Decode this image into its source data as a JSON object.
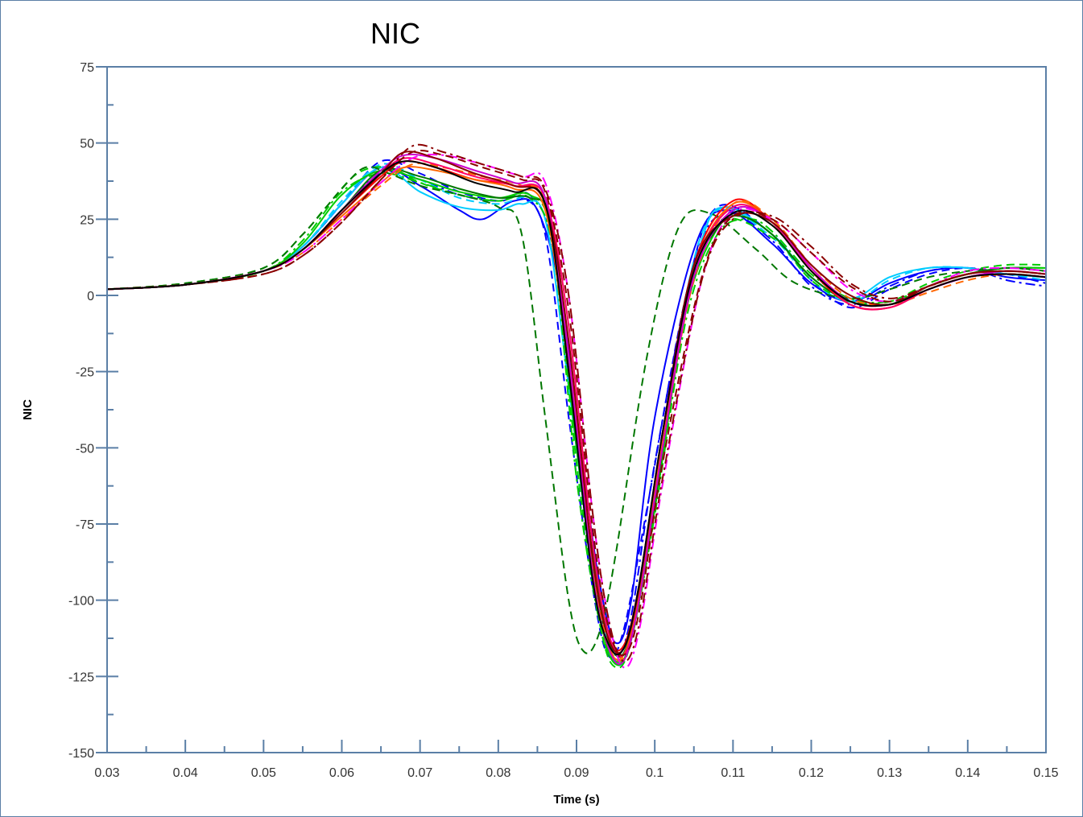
{
  "chart_data": {
    "type": "line",
    "title": "NIC",
    "xlabel": "Time (s)",
    "ylabel": "NIC",
    "xlim": [
      0.03,
      0.15
    ],
    "ylim": [
      -150,
      75
    ],
    "xticks": [
      "0.03",
      "0.04",
      "0.05",
      "0.06",
      "0.07",
      "0.08",
      "0.09",
      "0.1",
      "0.11",
      "0.12",
      "0.13",
      "0.14",
      "0.15"
    ],
    "yticks": [
      "75",
      "50",
      "25",
      "0",
      "-25",
      "-50",
      "-75",
      "-100",
      "-125",
      "-150"
    ],
    "xtick_values": [
      0.03,
      0.04,
      0.05,
      0.06,
      0.07,
      0.08,
      0.09,
      0.1,
      0.11,
      0.12,
      0.13,
      0.14,
      0.15
    ],
    "ytick_values": [
      75,
      50,
      25,
      0,
      -25,
      -50,
      -75,
      -100,
      -125,
      -150
    ],
    "grid": false,
    "legend": "none",
    "series": [
      {
        "color": "#0000ff",
        "dash": "solid",
        "x": [
          0.03,
          0.04,
          0.05,
          0.055,
          0.06,
          0.065,
          0.07,
          0.075,
          0.078,
          0.082,
          0.085,
          0.088,
          0.091,
          0.093,
          0.095,
          0.097,
          0.1,
          0.105,
          0.109,
          0.115,
          0.12,
          0.125,
          0.13,
          0.135,
          0.14,
          0.145,
          0.15
        ],
        "y": [
          2,
          3.5,
          8,
          16,
          30,
          42,
          36,
          28,
          25,
          31,
          28,
          0,
          -60,
          -95,
          -114,
          -100,
          -40,
          15,
          28,
          17,
          4,
          -2,
          4,
          8,
          9,
          6,
          5
        ]
      },
      {
        "color": "#0000ff",
        "dash": "dashed",
        "x": [
          0.03,
          0.04,
          0.05,
          0.055,
          0.06,
          0.065,
          0.07,
          0.075,
          0.08,
          0.083,
          0.086,
          0.089,
          0.092,
          0.094,
          0.096,
          0.099,
          0.104,
          0.108,
          0.115,
          0.12,
          0.125,
          0.13,
          0.135,
          0.14,
          0.145,
          0.15
        ],
        "y": [
          2,
          3.5,
          8,
          16,
          30,
          44,
          40,
          34,
          31,
          32,
          20,
          -40,
          -95,
          -118,
          -110,
          -70,
          0,
          29,
          20,
          5,
          -4,
          2,
          7,
          9,
          7,
          4
        ]
      },
      {
        "color": "#0000ff",
        "dash": "dashdot",
        "x": [
          0.03,
          0.04,
          0.05,
          0.055,
          0.06,
          0.065,
          0.07,
          0.075,
          0.08,
          0.084,
          0.087,
          0.09,
          0.093,
          0.095,
          0.097,
          0.1,
          0.105,
          0.109,
          0.115,
          0.12,
          0.125,
          0.13,
          0.135,
          0.14,
          0.145,
          0.15
        ],
        "y": [
          2,
          3.5,
          8,
          15,
          28,
          40,
          38,
          33,
          31,
          33,
          15,
          -50,
          -100,
          -118,
          -105,
          -55,
          10,
          27,
          18,
          3,
          -3,
          3,
          8,
          9,
          5,
          3
        ]
      },
      {
        "color": "#00ccff",
        "dash": "solid",
        "x": [
          0.03,
          0.04,
          0.05,
          0.055,
          0.06,
          0.065,
          0.07,
          0.075,
          0.08,
          0.083,
          0.086,
          0.089,
          0.092,
          0.094,
          0.096,
          0.098,
          0.102,
          0.106,
          0.109,
          0.115,
          0.12,
          0.125,
          0.13,
          0.135,
          0.14,
          0.145,
          0.15
        ],
        "y": [
          2,
          3.5,
          8,
          16,
          30,
          42,
          34,
          29,
          28,
          30,
          25,
          -30,
          -90,
          -115,
          -120,
          -95,
          -30,
          18,
          29,
          20,
          6,
          -1,
          6,
          9,
          9,
          7,
          6
        ]
      },
      {
        "color": "#00ccff",
        "dash": "dashed",
        "x": [
          0.03,
          0.04,
          0.05,
          0.055,
          0.06,
          0.065,
          0.07,
          0.075,
          0.08,
          0.084,
          0.087,
          0.09,
          0.093,
          0.095,
          0.097,
          0.1,
          0.104,
          0.108,
          0.115,
          0.12,
          0.125,
          0.13,
          0.135,
          0.14,
          0.145,
          0.15
        ],
        "y": [
          2,
          3.5,
          8,
          16,
          31,
          43,
          38,
          32,
          30,
          32,
          22,
          -45,
          -100,
          -120,
          -112,
          -70,
          0,
          28,
          19,
          5,
          -2,
          5,
          9,
          9,
          7,
          5
        ]
      },
      {
        "color": "#00cc00",
        "dash": "solid",
        "x": [
          0.03,
          0.04,
          0.05,
          0.055,
          0.06,
          0.065,
          0.07,
          0.075,
          0.08,
          0.084,
          0.087,
          0.09,
          0.093,
          0.095,
          0.097,
          0.1,
          0.104,
          0.108,
          0.111,
          0.115,
          0.12,
          0.125,
          0.13,
          0.135,
          0.14,
          0.145,
          0.15
        ],
        "y": [
          2,
          3.5,
          8,
          17,
          33,
          41,
          38,
          34,
          32,
          33,
          20,
          -50,
          -105,
          -121,
          -112,
          -70,
          -5,
          22,
          26,
          20,
          6,
          -2,
          -3,
          3,
          7,
          9,
          9
        ]
      },
      {
        "color": "#00cc00",
        "dash": "dashed",
        "x": [
          0.03,
          0.04,
          0.05,
          0.055,
          0.058,
          0.062,
          0.066,
          0.07,
          0.075,
          0.08,
          0.084,
          0.087,
          0.09,
          0.093,
          0.095,
          0.097,
          0.1,
          0.104,
          0.108,
          0.115,
          0.12,
          0.125,
          0.13,
          0.135,
          0.14,
          0.145,
          0.15
        ],
        "y": [
          2,
          4,
          9,
          20,
          29,
          40,
          42,
          37,
          33,
          31,
          33,
          18,
          -55,
          -108,
          -122,
          -113,
          -70,
          -5,
          24,
          19,
          5,
          -2,
          -2,
          4,
          8,
          10,
          10
        ]
      },
      {
        "color": "#00cc00",
        "dash": "dashdot",
        "x": [
          0.03,
          0.04,
          0.05,
          0.055,
          0.06,
          0.065,
          0.07,
          0.075,
          0.08,
          0.084,
          0.087,
          0.09,
          0.093,
          0.095,
          0.097,
          0.1,
          0.104,
          0.108,
          0.112,
          0.115,
          0.12,
          0.125,
          0.13,
          0.135,
          0.14,
          0.145,
          0.15
        ],
        "y": [
          2,
          3.5,
          8,
          18,
          34,
          40,
          37,
          33,
          31,
          32,
          15,
          -60,
          -108,
          -120,
          -113,
          -72,
          -8,
          20,
          25,
          21,
          7,
          -1,
          -2,
          3,
          7,
          9,
          9
        ]
      },
      {
        "color": "#007700",
        "dash": "dashed",
        "x": [
          0.03,
          0.04,
          0.05,
          0.055,
          0.06,
          0.063,
          0.066,
          0.07,
          0.075,
          0.08,
          0.083,
          0.086,
          0.089,
          0.091,
          0.093,
          0.095,
          0.099,
          0.103,
          0.107,
          0.113,
          0.118,
          0.125,
          0.13,
          0.135,
          0.14,
          0.145,
          0.15
        ],
        "y": [
          2,
          4,
          9,
          20,
          35,
          42,
          40,
          36,
          33,
          29,
          20,
          -40,
          -100,
          -117,
          -110,
          -85,
          -20,
          22,
          27,
          15,
          4,
          -1,
          2,
          6,
          8,
          9,
          8
        ]
      },
      {
        "color": "#007700",
        "dash": "solid",
        "x": [
          0.03,
          0.04,
          0.05,
          0.055,
          0.06,
          0.065,
          0.07,
          0.075,
          0.08,
          0.084,
          0.087,
          0.09,
          0.093,
          0.095,
          0.097,
          0.1,
          0.104,
          0.108,
          0.111,
          0.115,
          0.12,
          0.125,
          0.13,
          0.135,
          0.14,
          0.145,
          0.15
        ],
        "y": [
          2,
          3.5,
          8,
          15,
          28,
          41,
          39,
          35,
          32,
          32,
          22,
          -45,
          -100,
          -118,
          -110,
          -68,
          0,
          22,
          26,
          20,
          6,
          -2,
          -3,
          3,
          7,
          9,
          8
        ]
      },
      {
        "color": "#ff0000",
        "dash": "solid",
        "x": [
          0.03,
          0.04,
          0.05,
          0.055,
          0.06,
          0.065,
          0.068,
          0.072,
          0.077,
          0.082,
          0.086,
          0.089,
          0.092,
          0.094,
          0.096,
          0.098,
          0.101,
          0.105,
          0.11,
          0.115,
          0.12,
          0.125,
          0.13,
          0.135,
          0.14,
          0.145,
          0.15
        ],
        "y": [
          2,
          3.5,
          8,
          15,
          27,
          39,
          44,
          42,
          38,
          36,
          30,
          -20,
          -85,
          -112,
          -115,
          -95,
          -45,
          10,
          31,
          24,
          8,
          -3,
          -4,
          2,
          6,
          7,
          6
        ]
      },
      {
        "color": "#ff6600",
        "dash": "solid",
        "x": [
          0.03,
          0.04,
          0.05,
          0.055,
          0.06,
          0.065,
          0.068,
          0.072,
          0.077,
          0.082,
          0.086,
          0.089,
          0.092,
          0.094,
          0.096,
          0.098,
          0.101,
          0.105,
          0.11,
          0.115,
          0.12,
          0.125,
          0.13,
          0.135,
          0.14,
          0.145,
          0.15
        ],
        "y": [
          2,
          3.5,
          8,
          15,
          26,
          37,
          42,
          41,
          38,
          35,
          28,
          -25,
          -90,
          -115,
          -118,
          -98,
          -48,
          8,
          30,
          24,
          9,
          -2,
          -3,
          2,
          6,
          7,
          6
        ]
      },
      {
        "color": "#ff6600",
        "dash": "dashed",
        "x": [
          0.03,
          0.04,
          0.05,
          0.055,
          0.06,
          0.065,
          0.069,
          0.073,
          0.078,
          0.083,
          0.086,
          0.089,
          0.092,
          0.094,
          0.096,
          0.098,
          0.101,
          0.105,
          0.11,
          0.115,
          0.12,
          0.125,
          0.13,
          0.135,
          0.14,
          0.145,
          0.15
        ],
        "y": [
          2,
          3.5,
          8,
          14,
          25,
          36,
          43,
          42,
          39,
          36,
          30,
          -20,
          -88,
          -114,
          -119,
          -100,
          -50,
          5,
          30,
          25,
          10,
          -1,
          -3,
          1,
          5,
          7,
          6
        ]
      },
      {
        "color": "#ff0066",
        "dash": "solid",
        "x": [
          0.03,
          0.04,
          0.05,
          0.055,
          0.06,
          0.065,
          0.068,
          0.072,
          0.077,
          0.082,
          0.086,
          0.089,
          0.092,
          0.094,
          0.096,
          0.098,
          0.101,
          0.105,
          0.11,
          0.115,
          0.12,
          0.125,
          0.13,
          0.135,
          0.14,
          0.145,
          0.15
        ],
        "y": [
          2,
          3.5,
          8,
          15,
          28,
          40,
          45,
          43,
          39,
          36,
          32,
          -10,
          -80,
          -110,
          -118,
          -100,
          -50,
          8,
          29,
          24,
          9,
          -3,
          -4,
          2,
          6,
          7,
          6
        ]
      },
      {
        "color": "#cc00cc",
        "dash": "solid",
        "x": [
          0.03,
          0.04,
          0.05,
          0.055,
          0.06,
          0.065,
          0.068,
          0.072,
          0.077,
          0.082,
          0.086,
          0.089,
          0.092,
          0.094,
          0.096,
          0.098,
          0.101,
          0.105,
          0.11,
          0.115,
          0.12,
          0.125,
          0.13,
          0.135,
          0.14,
          0.145,
          0.15
        ],
        "y": [
          2,
          3.5,
          8,
          15,
          28,
          41,
          46,
          45,
          41,
          37,
          32,
          -20,
          -90,
          -115,
          -120,
          -100,
          -50,
          6,
          28,
          24,
          9,
          -2,
          -3,
          2,
          6,
          8,
          7
        ]
      },
      {
        "color": "#ff00ff",
        "dash": "dashdot",
        "x": [
          0.03,
          0.04,
          0.05,
          0.055,
          0.06,
          0.065,
          0.069,
          0.073,
          0.078,
          0.083,
          0.086,
          0.089,
          0.092,
          0.094,
          0.096,
          0.098,
          0.101,
          0.106,
          0.11,
          0.115,
          0.12,
          0.125,
          0.13,
          0.135,
          0.14,
          0.145,
          0.15
        ],
        "y": [
          2,
          3.5,
          8,
          14,
          25,
          37,
          45,
          46,
          43,
          39,
          37,
          0,
          -70,
          -105,
          -122,
          -110,
          -62,
          5,
          27,
          25,
          14,
          2,
          -2,
          3,
          8,
          9,
          8
        ]
      },
      {
        "color": "#8b0000",
        "dash": "solid",
        "x": [
          0.03,
          0.04,
          0.05,
          0.055,
          0.06,
          0.065,
          0.068,
          0.072,
          0.077,
          0.082,
          0.086,
          0.089,
          0.092,
          0.094,
          0.096,
          0.098,
          0.101,
          0.105,
          0.11,
          0.115,
          0.12,
          0.125,
          0.13,
          0.135,
          0.14,
          0.145,
          0.15
        ],
        "y": [
          2,
          3.5,
          8,
          15,
          27,
          40,
          47,
          45,
          40,
          36,
          30,
          -15,
          -85,
          -112,
          -116,
          -96,
          -45,
          10,
          26,
          24,
          10,
          0,
          -3,
          3,
          7,
          8,
          7
        ]
      },
      {
        "color": "#8b0000",
        "dash": "dashdot",
        "x": [
          0.03,
          0.04,
          0.05,
          0.055,
          0.06,
          0.065,
          0.069,
          0.073,
          0.078,
          0.083,
          0.086,
          0.089,
          0.092,
          0.094,
          0.096,
          0.098,
          0.101,
          0.106,
          0.11,
          0.115,
          0.12,
          0.125,
          0.13,
          0.135,
          0.14,
          0.145,
          0.15
        ],
        "y": [
          2,
          3.5,
          7,
          13,
          24,
          38,
          49,
          47,
          43,
          39,
          35,
          0,
          -70,
          -105,
          -120,
          -108,
          -60,
          5,
          25,
          26,
          16,
          4,
          -1,
          3,
          7,
          8,
          7
        ]
      },
      {
        "color": "#8b0000",
        "dash": "dashed",
        "x": [
          0.03,
          0.04,
          0.05,
          0.055,
          0.06,
          0.065,
          0.069,
          0.073,
          0.078,
          0.083,
          0.086,
          0.089,
          0.092,
          0.094,
          0.096,
          0.098,
          0.101,
          0.106,
          0.11,
          0.115,
          0.12,
          0.125,
          0.13,
          0.135,
          0.14,
          0.145,
          0.15
        ],
        "y": [
          2,
          3.5,
          7,
          13,
          24,
          38,
          47,
          46,
          42,
          38,
          34,
          -5,
          -75,
          -108,
          -118,
          -104,
          -55,
          6,
          26,
          25,
          14,
          3,
          -2,
          3,
          7,
          8,
          7
        ]
      },
      {
        "color": "#000000",
        "dash": "solid",
        "x": [
          0.03,
          0.04,
          0.05,
          0.055,
          0.06,
          0.065,
          0.068,
          0.072,
          0.077,
          0.082,
          0.086,
          0.089,
          0.092,
          0.094,
          0.096,
          0.098,
          0.101,
          0.105,
          0.11,
          0.115,
          0.12,
          0.125,
          0.13,
          0.135,
          0.14,
          0.145,
          0.15
        ],
        "y": [
          2,
          3.5,
          8,
          15,
          28,
          40,
          44,
          42,
          37,
          34,
          30,
          -25,
          -92,
          -114,
          -116,
          -95,
          -45,
          8,
          27,
          23,
          8,
          -2,
          -3,
          2,
          6,
          7,
          6
        ]
      }
    ]
  }
}
